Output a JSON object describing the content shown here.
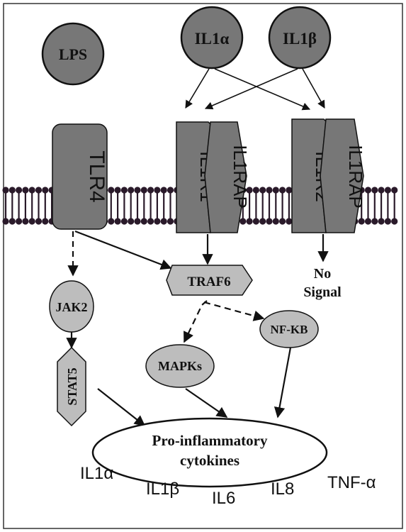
{
  "ligands": {
    "lps": "LPS",
    "il1a": "IL1α",
    "il1b": "IL1β"
  },
  "receptors": {
    "tlr4": "TLR4",
    "il1r1": "IL1R1",
    "il1rap_1": "IL1RAP",
    "il1r2": "IL1R2",
    "il1rap_2": "IL1RAP"
  },
  "signaling": {
    "traf6": "TRAF6",
    "jak2": "JAK2",
    "stat5": "STAT5",
    "nfkb": "NF-KB",
    "mapks": "MAPKs",
    "no_signal_line1": "No",
    "no_signal_line2": "Signal"
  },
  "output": {
    "label_line1": "Pro-inflammatory",
    "label_line2": "cytokines",
    "cytokines": [
      "IL1α",
      "IL1β",
      "IL6",
      "IL8",
      "TNF-α"
    ]
  },
  "colors": {
    "dark_fill": "#777777",
    "light_fill": "#bdbdbd",
    "lipid_head": "#2a1a2a",
    "stroke": "#111111"
  }
}
